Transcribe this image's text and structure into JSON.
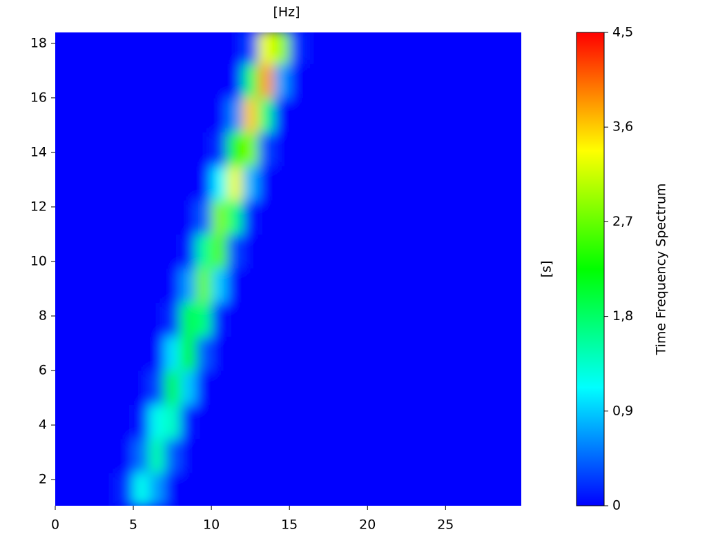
{
  "chart_data": {
    "type": "heatmap",
    "xlabel": "[Hz]",
    "ylabel": "[s]",
    "colorbar_label": "Time Frequency Spectrum",
    "x_bins": [
      0,
      1,
      2,
      3,
      4,
      5,
      6,
      7,
      8,
      9,
      10,
      11,
      12,
      13,
      14,
      15,
      16,
      17,
      18,
      19,
      20,
      21,
      22,
      23,
      24,
      25,
      26,
      27,
      28,
      29,
      30
    ],
    "y_bins": [
      1,
      2.25,
      3.5,
      4.75,
      6,
      7.25,
      8.5,
      9.75,
      11,
      12.25,
      13.5,
      14.75,
      16,
      17.25,
      18.5
    ],
    "values": [
      [
        0,
        0,
        0,
        0,
        0.2,
        1.2,
        0.7,
        0,
        0,
        0,
        0,
        0,
        0,
        0,
        0,
        0,
        0,
        0,
        0,
        0,
        0,
        0,
        0,
        0,
        0,
        0,
        0,
        0,
        0,
        0
      ],
      [
        0,
        0,
        0,
        0,
        0,
        0.5,
        1.5,
        0.4,
        0,
        0,
        0,
        0,
        0,
        0,
        0,
        0,
        0,
        0,
        0,
        0,
        0,
        0,
        0,
        0,
        0,
        0,
        0,
        0,
        0,
        0
      ],
      [
        0,
        0,
        0,
        0,
        0,
        0.1,
        1.2,
        1.4,
        0.1,
        0,
        0,
        0,
        0,
        0,
        0,
        0,
        0,
        0,
        0,
        0,
        0,
        0,
        0,
        0,
        0,
        0,
        0,
        0,
        0,
        0
      ],
      [
        0,
        0,
        0,
        0,
        0,
        0,
        0.3,
        1.9,
        0.9,
        0,
        0,
        0,
        0,
        0,
        0,
        0,
        0,
        0,
        0,
        0,
        0,
        0,
        0,
        0,
        0,
        0,
        0,
        0,
        0,
        0
      ],
      [
        0,
        0,
        0,
        0,
        0,
        0,
        0,
        1.0,
        2.1,
        0.4,
        0,
        0,
        0,
        0,
        0,
        0,
        0,
        0,
        0,
        0,
        0,
        0,
        0,
        0,
        0,
        0,
        0,
        0,
        0,
        0
      ],
      [
        0,
        0,
        0,
        0,
        0,
        0,
        0,
        0.2,
        1.9,
        1.7,
        0.1,
        0,
        0,
        0,
        0,
        0,
        0,
        0,
        0,
        0,
        0,
        0,
        0,
        0,
        0,
        0,
        0,
        0,
        0,
        0
      ],
      [
        0,
        0,
        0,
        0,
        0,
        0,
        0,
        0,
        0.7,
        2.7,
        0.9,
        0,
        0,
        0,
        0,
        0,
        0,
        0,
        0,
        0,
        0,
        0,
        0,
        0,
        0,
        0,
        0,
        0,
        0,
        0
      ],
      [
        0,
        0,
        0,
        0,
        0,
        0,
        0,
        0,
        0.1,
        1.6,
        2.6,
        0.3,
        0,
        0,
        0,
        0,
        0,
        0,
        0,
        0,
        0,
        0,
        0,
        0,
        0,
        0,
        0,
        0,
        0,
        0
      ],
      [
        0,
        0,
        0,
        0,
        0,
        0,
        0,
        0,
        0,
        0.4,
        2.8,
        1.7,
        0.1,
        0,
        0,
        0,
        0,
        0,
        0,
        0,
        0,
        0,
        0,
        0,
        0,
        0,
        0,
        0,
        0,
        0
      ],
      [
        0,
        0,
        0,
        0,
        0,
        0,
        0,
        0,
        0,
        0,
        1.1,
        3.3,
        0.8,
        0,
        0,
        0,
        0,
        0,
        0,
        0,
        0,
        0,
        0,
        0,
        0,
        0,
        0,
        0,
        0,
        0
      ],
      [
        0,
        0,
        0,
        0,
        0,
        0,
        0,
        0,
        0,
        0,
        0.2,
        2.4,
        2.8,
        0.3,
        0,
        0,
        0,
        0,
        0,
        0,
        0,
        0,
        0,
        0,
        0,
        0,
        0,
        0,
        0,
        0
      ],
      [
        0,
        0,
        0,
        0,
        0,
        0,
        0,
        0,
        0,
        0,
        0,
        0.6,
        3.6,
        1.7,
        0,
        0,
        0,
        0,
        0,
        0,
        0,
        0,
        0,
        0,
        0,
        0,
        0,
        0,
        0,
        0
      ],
      [
        0,
        0,
        0,
        0,
        0,
        0,
        0,
        0,
        0,
        0,
        0,
        0,
        1.8,
        3.8,
        0.7,
        0,
        0,
        0,
        0,
        0,
        0,
        0,
        0,
        0,
        0,
        0,
        0,
        0,
        0,
        0
      ],
      [
        0,
        0,
        0,
        0,
        0,
        0,
        0,
        0,
        0,
        0,
        0,
        0,
        0.3,
        3.3,
        2.9,
        0.2,
        0,
        0,
        0,
        0,
        0,
        0,
        0,
        0,
        0,
        0,
        0,
        0,
        0,
        0
      ]
    ],
    "xlim": [
      0,
      29.85
    ],
    "xticks": [
      0,
      5,
      10,
      15,
      20,
      25
    ],
    "ylim": [
      1.04,
      18.4
    ],
    "yticks": [
      2,
      4,
      6,
      8,
      10,
      12,
      14,
      16,
      18
    ],
    "zlim": [
      0,
      4.5
    ],
    "zticks": [
      0,
      {
        "value": 0.9,
        "label": "0,9"
      },
      {
        "value": 1.8,
        "label": "1,8"
      },
      {
        "value": 2.7,
        "label": "2,7"
      },
      {
        "value": 3.6,
        "label": "3,6"
      },
      {
        "value": 4.5,
        "label": "4,5"
      }
    ],
    "colormap": [
      "#0000ff",
      "#0080ff",
      "#00ffff",
      "#00ff80",
      "#00ff00",
      "#80ff00",
      "#ffff00",
      "#ff8000",
      "#ff0000"
    ]
  }
}
